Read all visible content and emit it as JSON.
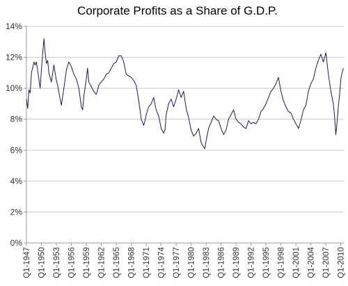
{
  "chart_data": {
    "type": "line",
    "title": "Corporate Profits as a Share of G.D.P.",
    "xlabel": "",
    "ylabel": "",
    "ylim": [
      0,
      14
    ],
    "y_ticks": [
      "0%",
      "2%",
      "4%",
      "6%",
      "8%",
      "10%",
      "12%",
      "14%"
    ],
    "y_tick_values": [
      0,
      2,
      4,
      6,
      8,
      10,
      12,
      14
    ],
    "x_tick_labels": [
      "Q1-1947",
      "Q1-1950",
      "Q1-1953",
      "Q1-1956",
      "Q1-1959",
      "Q1-1962",
      "Q1-1965",
      "Q1-1968",
      "Q1-1971",
      "Q1-1974",
      "Q1-1977",
      "Q1-1980",
      "Q1-1983",
      "Q1-1986",
      "Q1-1989",
      "Q1-1992",
      "Q1-1995",
      "Q1-1998",
      "Q1-2001",
      "Q1-2004",
      "Q1-2007",
      "Q1-2010"
    ],
    "x_tick_years": [
      1947,
      1950,
      1953,
      1956,
      1959,
      1962,
      1965,
      1968,
      1971,
      1974,
      1977,
      1980,
      1983,
      1986,
      1989,
      1992,
      1995,
      1998,
      2001,
      2004,
      2007,
      2010
    ],
    "xlim": [
      1947,
      2010.6
    ],
    "grid": true,
    "legend": "none",
    "line_color": "#1a1a4a",
    "series": [
      {
        "x": [
          1947.0,
          1947.25,
          1947.5,
          1947.75,
          1948.0,
          1948.5,
          1948.75,
          1949.0,
          1949.5,
          1949.75,
          1950.0,
          1950.25,
          1950.5,
          1950.75,
          1951.0,
          1951.25,
          1951.5,
          1952.0,
          1952.5,
          1953.0,
          1953.25,
          1953.75,
          1954.0,
          1954.5,
          1955.0,
          1955.5,
          1956.0,
          1956.5,
          1957.0,
          1957.5,
          1958.0,
          1958.25,
          1958.5,
          1959.0,
          1959.25,
          1959.5,
          1960.0,
          1960.5,
          1961.0,
          1961.5,
          1962.0,
          1962.5,
          1963.0,
          1963.5,
          1964.0,
          1964.5,
          1965.0,
          1965.5,
          1966.0,
          1966.5,
          1967.0,
          1967.5,
          1968.0,
          1968.5,
          1969.0,
          1969.5,
          1970.0,
          1970.5,
          1970.75,
          1971.0,
          1971.5,
          1972.0,
          1972.5,
          1973.0,
          1973.5,
          1974.0,
          1974.5,
          1974.75,
          1975.0,
          1975.5,
          1976.0,
          1976.5,
          1977.0,
          1977.5,
          1978.0,
          1978.5,
          1979.0,
          1979.5,
          1980.0,
          1980.5,
          1981.0,
          1981.5,
          1982.0,
          1982.5,
          1982.75,
          1983.0,
          1983.5,
          1984.0,
          1984.5,
          1985.0,
          1985.5,
          1986.0,
          1986.5,
          1987.0,
          1987.5,
          1988.0,
          1988.5,
          1989.0,
          1989.5,
          1990.0,
          1990.5,
          1991.0,
          1991.5,
          1992.0,
          1992.5,
          1993.0,
          1993.5,
          1994.0,
          1994.5,
          1995.0,
          1995.5,
          1996.0,
          1996.5,
          1997.0,
          1997.5,
          1998.0,
          1998.5,
          1999.0,
          1999.5,
          2000.0,
          2000.5,
          2001.0,
          2001.5,
          2002.0,
          2002.5,
          2003.0,
          2003.5,
          2004.0,
          2004.5,
          2005.0,
          2005.5,
          2006.0,
          2006.5,
          2007.0,
          2007.5,
          2008.0,
          2008.5,
          2008.75,
          2009.0,
          2009.25,
          2009.5,
          2009.75,
          2010.0,
          2010.25,
          2010.5
        ],
        "y": [
          9.3,
          8.7,
          9.9,
          9.7,
          11.0,
          11.7,
          11.5,
          11.7,
          10.6,
          10.0,
          11.2,
          12.2,
          13.2,
          12.3,
          11.6,
          11.8,
          11.0,
          10.4,
          11.5,
          10.5,
          10.2,
          9.3,
          8.9,
          10.0,
          11.2,
          11.7,
          11.4,
          10.9,
          10.6,
          10.0,
          8.8,
          8.6,
          9.5,
          10.6,
          11.3,
          10.4,
          10.1,
          9.8,
          9.6,
          10.2,
          10.4,
          10.6,
          10.9,
          11.0,
          11.3,
          11.6,
          11.7,
          12.1,
          12.1,
          11.7,
          10.9,
          10.8,
          10.7,
          10.5,
          10.2,
          9.2,
          8.0,
          7.6,
          7.9,
          8.3,
          8.8,
          9.0,
          9.4,
          8.6,
          8.2,
          7.4,
          7.1,
          7.3,
          8.3,
          9.0,
          9.3,
          8.8,
          9.3,
          9.9,
          9.4,
          9.8,
          8.7,
          8.1,
          7.3,
          6.9,
          7.1,
          7.4,
          6.5,
          6.2,
          6.1,
          6.6,
          7.4,
          7.8,
          8.2,
          8.0,
          7.9,
          7.4,
          7.0,
          7.3,
          8.0,
          8.3,
          8.6,
          8.0,
          7.8,
          7.7,
          7.5,
          7.4,
          7.9,
          7.7,
          7.8,
          7.7,
          8.0,
          8.5,
          8.7,
          9.0,
          9.4,
          9.8,
          10.0,
          10.3,
          10.7,
          9.8,
          9.2,
          8.8,
          8.5,
          8.4,
          8.0,
          7.7,
          7.4,
          7.9,
          8.6,
          8.9,
          9.8,
          10.3,
          10.6,
          11.3,
          11.8,
          12.2,
          11.7,
          12.3,
          10.9,
          9.8,
          9.0,
          8.2,
          7.0,
          7.8,
          8.8,
          9.6,
          10.6,
          11.0,
          11.3
        ]
      }
    ]
  }
}
